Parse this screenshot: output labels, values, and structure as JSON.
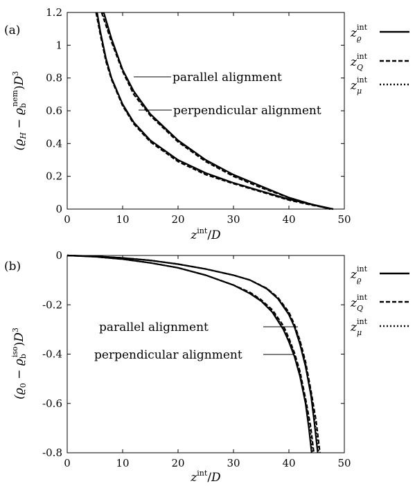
{
  "chart_data": [
    {
      "type": "line",
      "panel_label": "(a)",
      "xlabel": "z^int/D",
      "ylabel": "(ϱH − ϱb^nem)D³",
      "xlim": [
        0,
        50
      ],
      "ylim": [
        0,
        1.2
      ],
      "xticks": [
        "0",
        "10",
        "20",
        "30",
        "40",
        "50"
      ],
      "yticks": [
        "0",
        "0.2",
        "0.4",
        "0.6",
        "0.8",
        "1",
        "1.2"
      ],
      "grid": false,
      "legend_position": "right-outside",
      "legend": [
        {
          "label": "z_ϱ^int",
          "style": "solid"
        },
        {
          "label": "z_Q^int",
          "style": "dashed"
        },
        {
          "label": "z_μ^int",
          "style": "dotted"
        }
      ],
      "annotations": [
        "parallel alignment",
        "perpendicular alignment"
      ],
      "series": [
        {
          "name": "parallel alignment, z_ϱ^int",
          "style": "solid",
          "x": [
            6.6,
            8,
            10,
            12,
            15,
            20,
            25,
            30,
            35,
            40,
            44,
            47.5
          ],
          "y": [
            1.2,
            1.04,
            0.85,
            0.72,
            0.58,
            0.42,
            0.3,
            0.21,
            0.14,
            0.07,
            0.03,
            0.0
          ]
        },
        {
          "name": "parallel alignment, z_Q^int",
          "style": "dashed",
          "x": [
            6.2,
            8,
            10,
            12,
            15,
            20,
            25,
            30,
            35,
            40,
            44,
            47.5
          ],
          "y": [
            1.2,
            1.02,
            0.84,
            0.7,
            0.57,
            0.41,
            0.29,
            0.2,
            0.13,
            0.07,
            0.03,
            0.0
          ]
        },
        {
          "name": "parallel alignment, z_μ^int",
          "style": "dotted",
          "x": [
            6.4,
            8,
            10,
            12,
            15,
            20,
            25,
            30,
            35,
            40,
            44,
            47.5
          ],
          "y": [
            1.2,
            1.03,
            0.85,
            0.71,
            0.575,
            0.415,
            0.295,
            0.205,
            0.135,
            0.07,
            0.03,
            0.0
          ]
        },
        {
          "name": "perpendicular alignment, z_ϱ^int",
          "style": "solid",
          "x": [
            5.4,
            6,
            7,
            8,
            10,
            12,
            15,
            20,
            25,
            30,
            35,
            40,
            44,
            48
          ],
          "y": [
            1.2,
            1.08,
            0.92,
            0.8,
            0.64,
            0.53,
            0.42,
            0.3,
            0.22,
            0.16,
            0.11,
            0.06,
            0.03,
            0.0
          ]
        },
        {
          "name": "perpendicular alignment, z_Q^int",
          "style": "dashed",
          "x": [
            5.2,
            6,
            7,
            8,
            10,
            12,
            15,
            20,
            25,
            30,
            35,
            40,
            44,
            48
          ],
          "y": [
            1.2,
            1.06,
            0.9,
            0.79,
            0.63,
            0.52,
            0.41,
            0.29,
            0.21,
            0.155,
            0.105,
            0.055,
            0.025,
            0.0
          ]
        },
        {
          "name": "perpendicular alignment, z_μ^int",
          "style": "dotted",
          "x": [
            5.3,
            6,
            7,
            8,
            10,
            12,
            15,
            20,
            25,
            30,
            35,
            40,
            44,
            48
          ],
          "y": [
            1.2,
            1.07,
            0.91,
            0.795,
            0.635,
            0.525,
            0.415,
            0.295,
            0.215,
            0.158,
            0.108,
            0.058,
            0.028,
            0.0
          ]
        }
      ]
    },
    {
      "type": "line",
      "panel_label": "(b)",
      "xlabel": "z^int/D",
      "ylabel": "(ϱ0 − ϱb^iso)D³",
      "xlim": [
        0,
        50
      ],
      "ylim": [
        -0.8,
        0
      ],
      "xticks": [
        "0",
        "10",
        "20",
        "30",
        "40",
        "50"
      ],
      "yticks": [
        "0",
        "-0.2",
        "-0.4",
        "-0.6",
        "-0.8"
      ],
      "grid": false,
      "legend_position": "right-outside",
      "legend": [
        {
          "label": "z_ϱ^int",
          "style": "solid"
        },
        {
          "label": "z_Q^int",
          "style": "dashed"
        },
        {
          "label": "z_μ^int",
          "style": "dotted"
        }
      ],
      "annotations": [
        "parallel alignment",
        "perpendicular alignment"
      ],
      "series": [
        {
          "name": "parallel alignment, z_ϱ^int",
          "style": "solid",
          "x": [
            0,
            5,
            10,
            15,
            20,
            25,
            30,
            33,
            36,
            38,
            40,
            41,
            42,
            43,
            44,
            44.6,
            45.2
          ],
          "y": [
            0,
            -0.003,
            -0.01,
            -0.02,
            -0.035,
            -0.055,
            -0.08,
            -0.1,
            -0.135,
            -0.175,
            -0.24,
            -0.29,
            -0.36,
            -0.45,
            -0.57,
            -0.68,
            -0.8
          ]
        },
        {
          "name": "parallel alignment, z_Q^int",
          "style": "dashed",
          "x": [
            0,
            5,
            10,
            15,
            20,
            25,
            30,
            33,
            36,
            38,
            40,
            41,
            42,
            43,
            44,
            44.9,
            45.6
          ],
          "y": [
            0,
            -0.003,
            -0.01,
            -0.02,
            -0.035,
            -0.055,
            -0.08,
            -0.1,
            -0.133,
            -0.17,
            -0.23,
            -0.28,
            -0.345,
            -0.43,
            -0.55,
            -0.67,
            -0.8
          ]
        },
        {
          "name": "parallel alignment, z_μ^int",
          "style": "dotted",
          "x": [
            0,
            5,
            10,
            15,
            20,
            25,
            30,
            33,
            36,
            38,
            40,
            41,
            42,
            43,
            44,
            44.7,
            45.4
          ],
          "y": [
            0,
            -0.003,
            -0.01,
            -0.02,
            -0.035,
            -0.055,
            -0.08,
            -0.1,
            -0.134,
            -0.172,
            -0.235,
            -0.285,
            -0.35,
            -0.44,
            -0.56,
            -0.675,
            -0.8
          ]
        },
        {
          "name": "perpendicular alignment, z_ϱ^int",
          "style": "solid",
          "x": [
            0,
            5,
            10,
            15,
            20,
            25,
            30,
            33,
            35,
            37,
            39,
            40,
            41,
            42,
            43,
            43.6,
            44.1
          ],
          "y": [
            0,
            -0.005,
            -0.015,
            -0.03,
            -0.05,
            -0.08,
            -0.12,
            -0.155,
            -0.185,
            -0.23,
            -0.3,
            -0.35,
            -0.41,
            -0.49,
            -0.6,
            -0.7,
            -0.8
          ]
        },
        {
          "name": "perpendicular alignment, z_Q^int",
          "style": "dashed",
          "x": [
            0,
            5,
            10,
            15,
            20,
            25,
            30,
            33,
            35,
            37,
            39,
            40,
            41,
            42,
            43,
            43.9,
            44.5
          ],
          "y": [
            0,
            -0.005,
            -0.015,
            -0.03,
            -0.05,
            -0.08,
            -0.12,
            -0.15,
            -0.18,
            -0.22,
            -0.285,
            -0.335,
            -0.395,
            -0.47,
            -0.58,
            -0.69,
            -0.8
          ]
        },
        {
          "name": "perpendicular alignment, z_μ^int",
          "style": "dotted",
          "x": [
            0,
            5,
            10,
            15,
            20,
            25,
            30,
            33,
            35,
            37,
            39,
            40,
            41,
            42,
            43,
            43.75,
            44.3
          ],
          "y": [
            0,
            -0.005,
            -0.015,
            -0.03,
            -0.05,
            -0.08,
            -0.12,
            -0.152,
            -0.183,
            -0.225,
            -0.292,
            -0.342,
            -0.402,
            -0.48,
            -0.59,
            -0.695,
            -0.8
          ]
        }
      ]
    }
  ]
}
